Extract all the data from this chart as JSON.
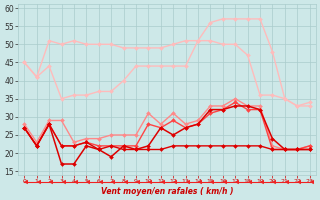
{
  "xlabel": "Vent moyen/en rafales ( km/h )",
  "bg_color": "#cde8e8",
  "grid_color": "#aacccc",
  "xlim": [
    -0.5,
    23.5
  ],
  "ylim": [
    14,
    61
  ],
  "yticks": [
    15,
    20,
    25,
    30,
    35,
    40,
    45,
    50,
    55,
    60
  ],
  "xticks": [
    0,
    1,
    2,
    3,
    4,
    5,
    6,
    7,
    8,
    9,
    10,
    11,
    12,
    13,
    14,
    15,
    16,
    17,
    18,
    19,
    20,
    21,
    22,
    23
  ],
  "series": [
    {
      "color": "#ffbbbb",
      "lw": 1.0,
      "marker": "D",
      "ms": 2.0,
      "data": [
        45,
        41,
        51,
        50,
        51,
        50,
        50,
        50,
        49,
        49,
        49,
        49,
        50,
        51,
        51,
        56,
        57,
        57,
        57,
        57,
        48,
        35,
        33,
        34
      ]
    },
    {
      "color": "#ffbbbb",
      "lw": 1.0,
      "marker": "D",
      "ms": 2.0,
      "data": [
        45,
        41,
        44,
        35,
        36,
        36,
        37,
        37,
        40,
        44,
        44,
        44,
        44,
        44,
        51,
        51,
        50,
        50,
        47,
        36,
        36,
        35,
        33,
        33
      ]
    },
    {
      "color": "#ff8888",
      "lw": 1.0,
      "marker": "D",
      "ms": 2.0,
      "data": [
        28,
        23,
        29,
        29,
        23,
        24,
        24,
        25,
        25,
        25,
        31,
        28,
        31,
        28,
        29,
        33,
        33,
        35,
        33,
        33,
        22,
        21,
        21,
        22
      ]
    },
    {
      "color": "#ff4444",
      "lw": 1.0,
      "marker": "D",
      "ms": 2.0,
      "data": [
        27,
        22,
        28,
        22,
        22,
        23,
        22,
        22,
        22,
        22,
        28,
        27,
        29,
        27,
        28,
        31,
        32,
        34,
        32,
        32,
        21,
        21,
        21,
        22
      ]
    },
    {
      "color": "#dd0000",
      "lw": 1.1,
      "marker": "D",
      "ms": 2.0,
      "data": [
        27,
        22,
        28,
        17,
        17,
        22,
        21,
        19,
        22,
        21,
        22,
        27,
        25,
        27,
        28,
        32,
        32,
        33,
        33,
        32,
        24,
        21,
        21,
        21
      ]
    },
    {
      "color": "#dd0000",
      "lw": 1.0,
      "marker": "D",
      "ms": 2.0,
      "data": [
        27,
        22,
        28,
        22,
        22,
        23,
        21,
        22,
        21,
        21,
        21,
        21,
        22,
        22,
        22,
        22,
        22,
        22,
        22,
        22,
        21,
        21,
        21,
        21
      ]
    },
    {
      "color": "#ee2222",
      "lw": 0.8,
      "marker": 4,
      "ms": 3.5,
      "data": [
        12,
        12,
        12,
        12,
        12,
        12,
        12,
        12,
        12,
        12,
        12,
        12,
        12,
        12,
        12,
        12,
        12,
        12,
        12,
        12,
        12,
        12,
        12,
        12
      ]
    }
  ]
}
